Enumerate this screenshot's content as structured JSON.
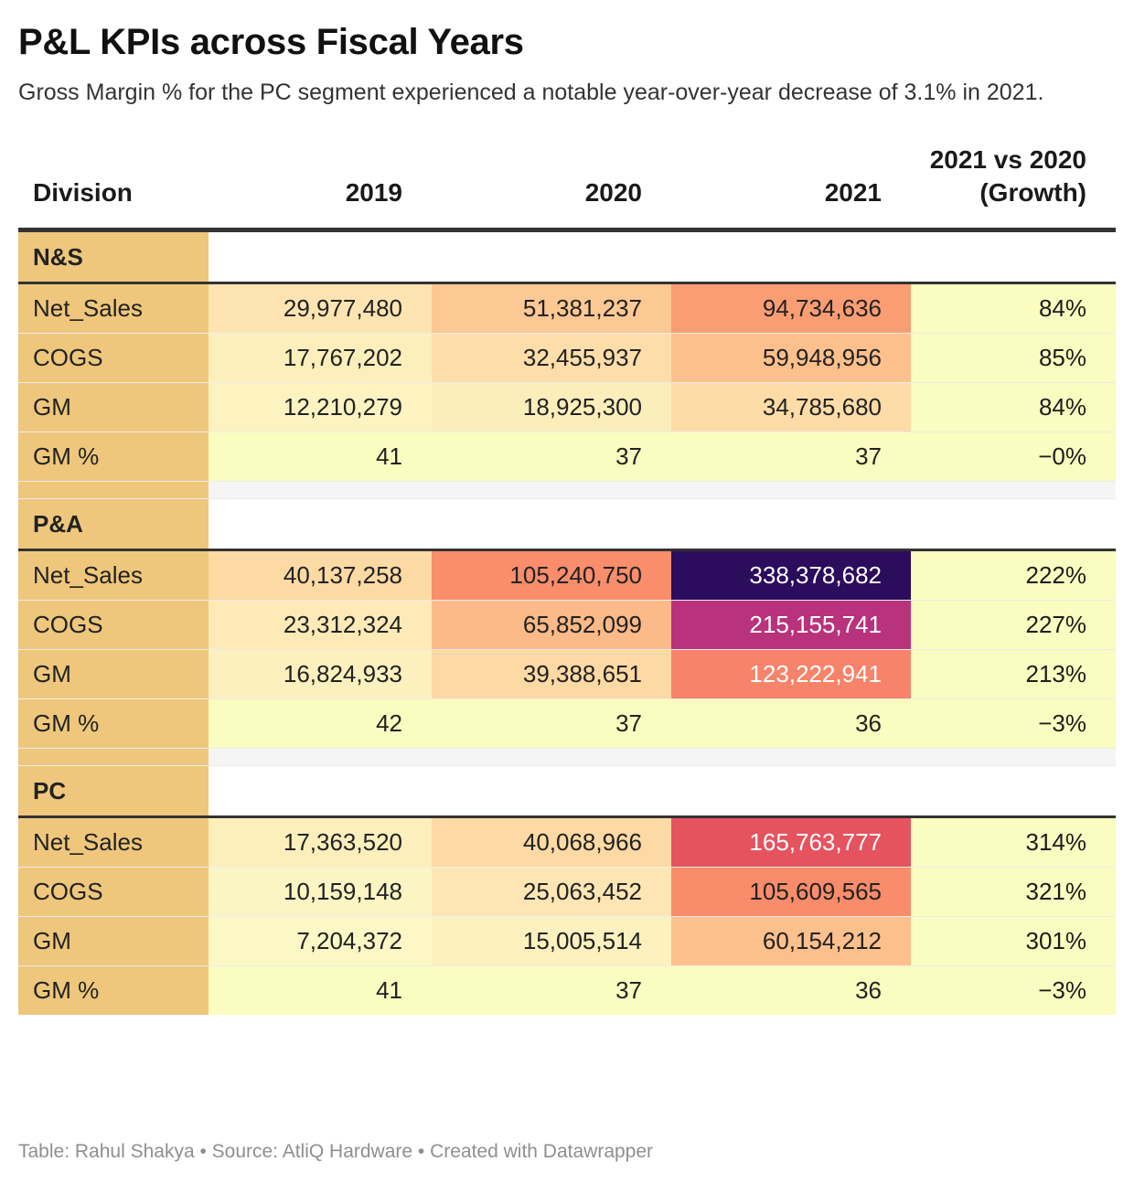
{
  "title": "P&L KPIs across Fiscal Years",
  "subtitle": "Gross Margin % for the PC segment experienced a notable year-over-year decrease of 3.1% in 2021.",
  "footer": "Table: Rahul Shakya • Source: AtliQ Hardware • Created with Datawrapper",
  "colors": {
    "label_column": "#eec77c",
    "scale": "magma_r"
  },
  "chart_data": {
    "type": "table",
    "columns": [
      "Division",
      "2019",
      "2020",
      "2021",
      "2021 vs 2020 (Growth)"
    ],
    "groups": [
      {
        "name": "N&S",
        "rows": [
          {
            "label": "Net_Sales",
            "values": [
              "29,977,480",
              "51,381,237",
              "94,734,636"
            ],
            "growth": "84%",
            "bg": [
              "#fde4b1",
              "#fcc893",
              "#fa9d73"
            ],
            "fg": [
              "#222222",
              "#222222",
              "#222222"
            ]
          },
          {
            "label": "COGS",
            "values": [
              "17,767,202",
              "32,455,937",
              "59,948,956"
            ],
            "growth": "85%",
            "bg": [
              "#fcefbc",
              "#fddeaa",
              "#fcc08d"
            ],
            "fg": [
              "#222222",
              "#222222",
              "#222222"
            ]
          },
          {
            "label": "GM",
            "values": [
              "12,210,279",
              "18,925,300",
              "34,785,680"
            ],
            "growth": "84%",
            "bg": [
              "#fcf3c1",
              "#fceebb",
              "#fddca7"
            ],
            "fg": [
              "#222222",
              "#222222",
              "#222222"
            ]
          },
          {
            "label": "GM %",
            "values": [
              "41",
              "37",
              "37"
            ],
            "growth": "−0%",
            "bg": [
              "#fbfcbf",
              "#fbfcbf",
              "#fbfcbf"
            ],
            "fg": [
              "#222222",
              "#222222",
              "#222222"
            ]
          }
        ]
      },
      {
        "name": "P&A",
        "rows": [
          {
            "label": "Net_Sales",
            "values": [
              "40,137,258",
              "105,240,750",
              "338,378,682"
            ],
            "growth": "222%",
            "bg": [
              "#fdd9a4",
              "#f98d6c",
              "#2b0c5d"
            ],
            "fg": [
              "#222222",
              "#222222",
              "#ffffff"
            ]
          },
          {
            "label": "COGS",
            "values": [
              "23,312,324",
              "65,852,099",
              "215,155,741"
            ],
            "growth": "227%",
            "bg": [
              "#fdeab7",
              "#fcba88",
              "#b9327c"
            ],
            "fg": [
              "#222222",
              "#222222",
              "#ffffff"
            ]
          },
          {
            "label": "GM",
            "values": [
              "16,824,933",
              "39,388,651",
              "123,222,941"
            ],
            "growth": "213%",
            "bg": [
              "#fbf0be",
              "#fdd9a3",
              "#f6836a"
            ],
            "fg": [
              "#222222",
              "#222222",
              "#ffffff"
            ]
          },
          {
            "label": "GM %",
            "values": [
              "42",
              "37",
              "36"
            ],
            "growth": "−3%",
            "bg": [
              "#fbfcbf",
              "#fbfcbf",
              "#fbfcbf"
            ],
            "fg": [
              "#222222",
              "#222222",
              "#222222"
            ]
          }
        ]
      },
      {
        "name": "PC",
        "rows": [
          {
            "label": "Net_Sales",
            "values": [
              "17,363,520",
              "40,068,966",
              "165,763,777"
            ],
            "growth": "314%",
            "bg": [
              "#fcefbc",
              "#fdd9a3",
              "#e5535f"
            ],
            "fg": [
              "#222222",
              "#222222",
              "#ffffff"
            ]
          },
          {
            "label": "COGS",
            "values": [
              "10,159,148",
              "25,063,452",
              "105,609,565"
            ],
            "growth": "321%",
            "bg": [
              "#fbf5c3",
              "#fde6b3",
              "#f98c6b"
            ],
            "fg": [
              "#222222",
              "#222222",
              "#222222"
            ]
          },
          {
            "label": "GM",
            "values": [
              "7,204,372",
              "15,005,514",
              "60,154,212"
            ],
            "growth": "301%",
            "bg": [
              "#fbf8c5",
              "#fcf1bf",
              "#fcc08d"
            ],
            "fg": [
              "#222222",
              "#222222",
              "#222222"
            ]
          },
          {
            "label": "GM %",
            "values": [
              "41",
              "37",
              "36"
            ],
            "growth": "−3%",
            "bg": [
              "#fbfcbf",
              "#fbfcbf",
              "#fbfcbf"
            ],
            "fg": [
              "#222222",
              "#222222",
              "#222222"
            ]
          }
        ]
      }
    ]
  }
}
